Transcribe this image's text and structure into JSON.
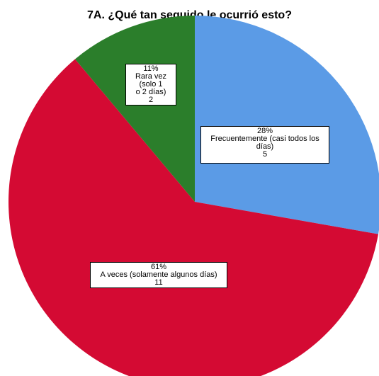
{
  "chart_data": {
    "type": "pie",
    "title": "7A. ¿Qué tan seguido le ocurrió esto?",
    "slices": [
      {
        "category": "Frecuentemente (casi todos los días)",
        "label_lines": [
          "Frecuentemente (casi todos los",
          "días)"
        ],
        "percent_label": "28%",
        "count": 5,
        "color": "#5b9be6"
      },
      {
        "category": "A veces (solamente algunos días)",
        "label_lines": [
          "A veces (solamente algunos días)"
        ],
        "percent_label": "61%",
        "count": 11,
        "color": "#d40a33"
      },
      {
        "category": "Rara vez (solo 1 o 2 días)",
        "label_lines": [
          "Rara vez (solo 1",
          "o 2 días)"
        ],
        "percent_label": "11%",
        "count": 2,
        "color": "#2b7e2b"
      }
    ],
    "start": "12 o'clock",
    "direction": "clockwise",
    "legend": "none"
  }
}
